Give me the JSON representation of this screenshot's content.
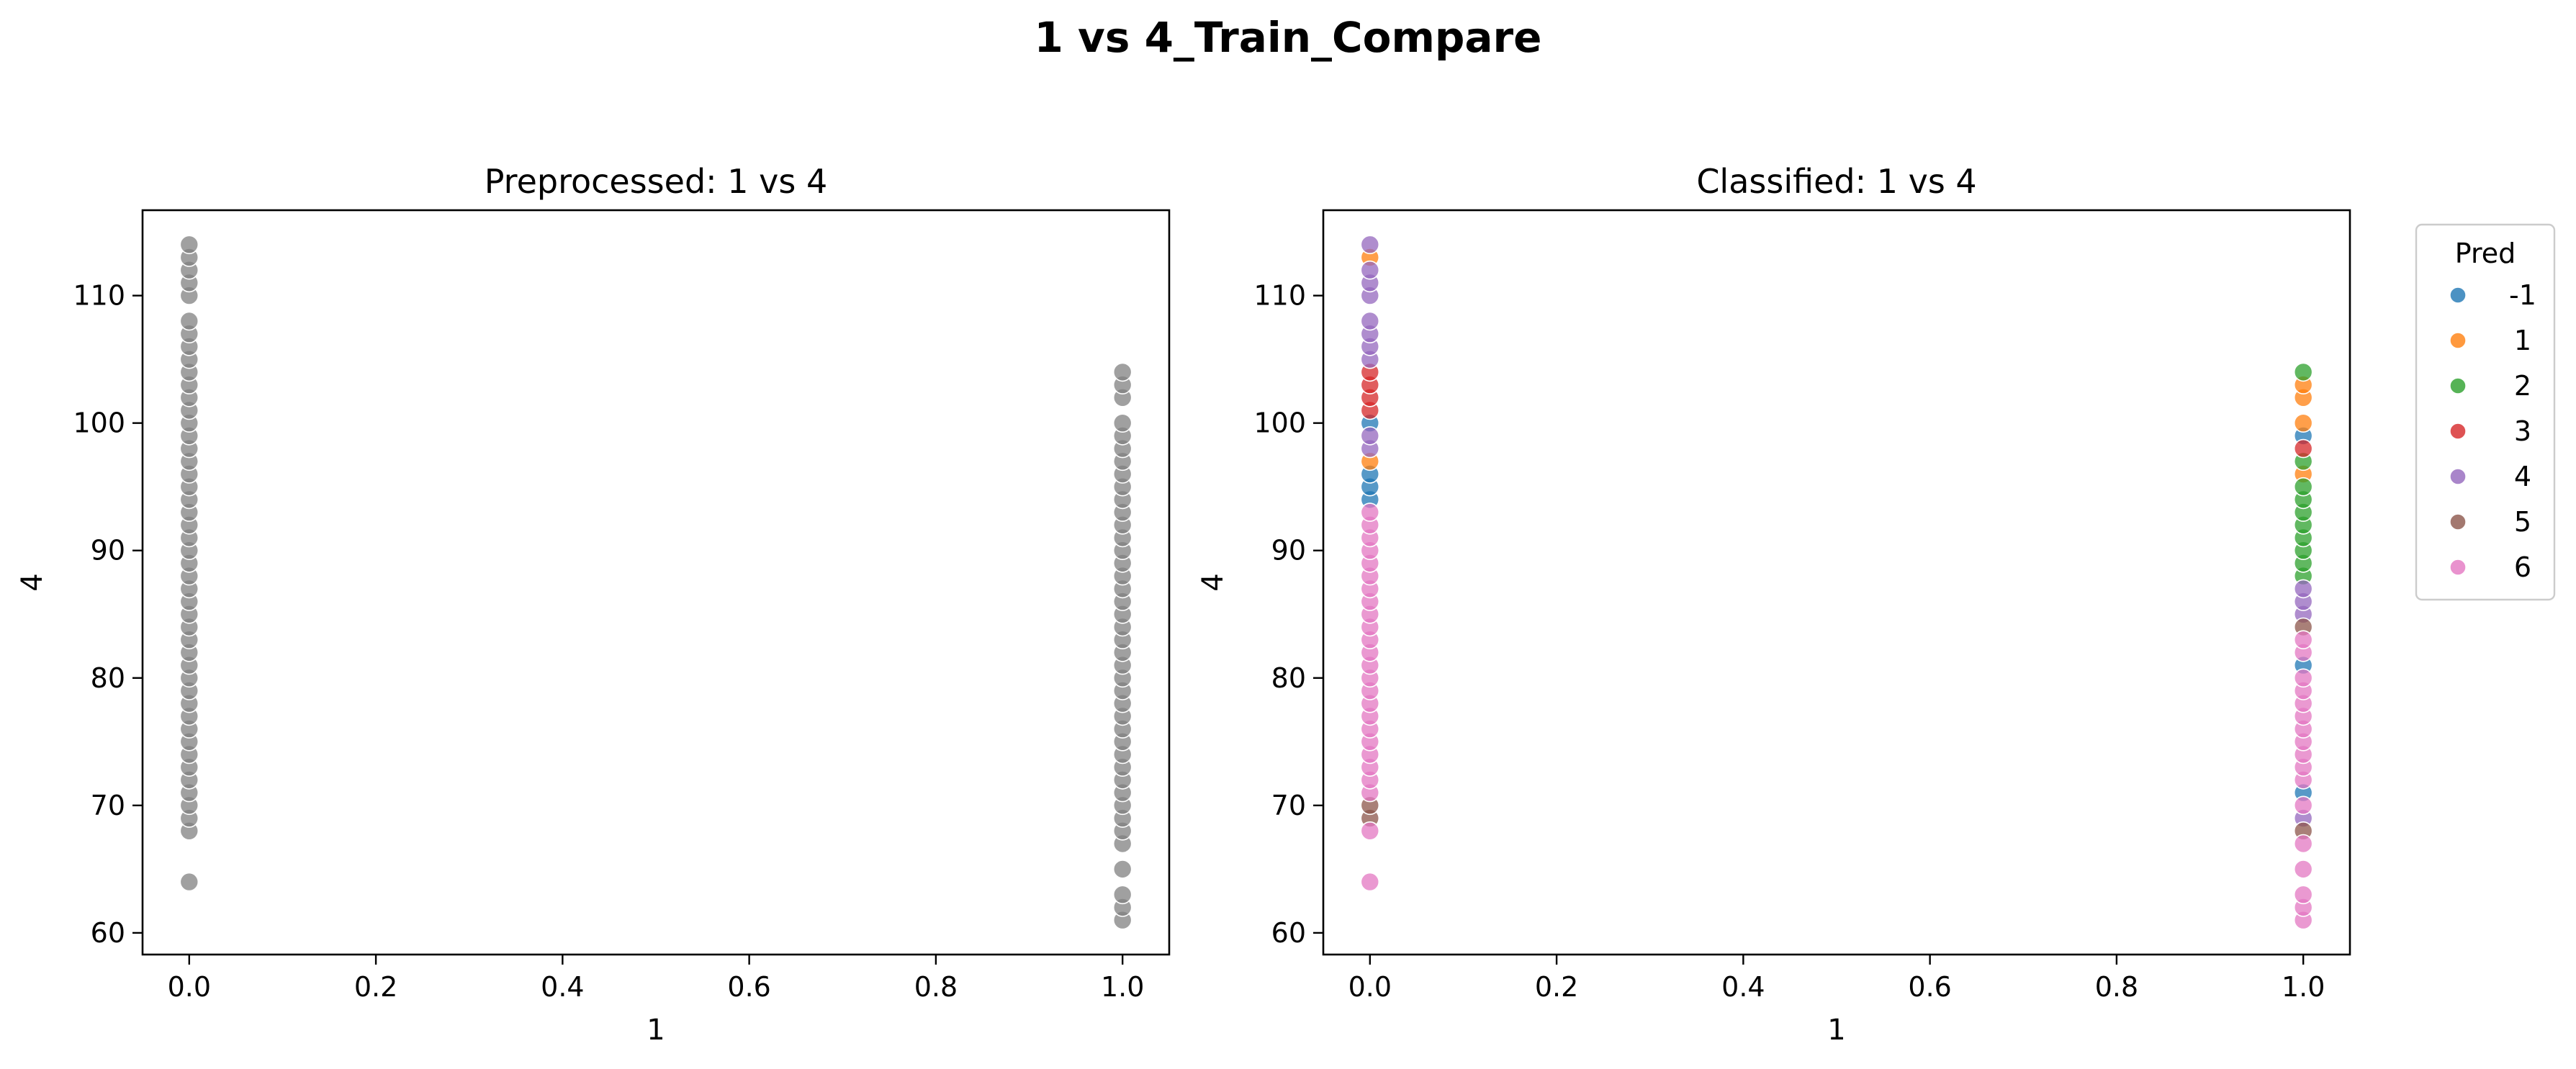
{
  "figure": {
    "suptitle": "1 vs 4_Train_Compare"
  },
  "chart_data": [
    {
      "type": "scatter",
      "title": "Preprocessed: 1 vs 4",
      "xlabel": "1",
      "ylabel": "4",
      "xlim": [
        -0.05,
        1.05
      ],
      "ylim": [
        58.3,
        116.7
      ],
      "xticks": [
        "0.0",
        "0.2",
        "0.4",
        "0.6",
        "0.8",
        "1.0"
      ],
      "yticks": [
        "60",
        "70",
        "80",
        "90",
        "100",
        "110"
      ],
      "grid": false,
      "series": [
        {
          "color": "#808080",
          "points": [
            [
              0,
              64
            ],
            [
              0,
              68
            ],
            [
              0,
              69
            ],
            [
              0,
              70
            ],
            [
              0,
              71
            ],
            [
              0,
              72
            ],
            [
              0,
              73
            ],
            [
              0,
              74
            ],
            [
              0,
              75
            ],
            [
              0,
              76
            ],
            [
              0,
              77
            ],
            [
              0,
              78
            ],
            [
              0,
              79
            ],
            [
              0,
              80
            ],
            [
              0,
              81
            ],
            [
              0,
              82
            ],
            [
              0,
              83
            ],
            [
              0,
              84
            ],
            [
              0,
              85
            ],
            [
              0,
              86
            ],
            [
              0,
              87
            ],
            [
              0,
              88
            ],
            [
              0,
              89
            ],
            [
              0,
              90
            ],
            [
              0,
              91
            ],
            [
              0,
              92
            ],
            [
              0,
              93
            ],
            [
              0,
              94
            ],
            [
              0,
              95
            ],
            [
              0,
              96
            ],
            [
              0,
              97
            ],
            [
              0,
              98
            ],
            [
              0,
              99
            ],
            [
              0,
              100
            ],
            [
              0,
              101
            ],
            [
              0,
              102
            ],
            [
              0,
              103
            ],
            [
              0,
              104
            ],
            [
              0,
              105
            ],
            [
              0,
              106
            ],
            [
              0,
              107
            ],
            [
              0,
              108
            ],
            [
              0,
              110
            ],
            [
              0,
              111
            ],
            [
              0,
              112
            ],
            [
              0,
              113
            ],
            [
              0,
              114
            ],
            [
              1,
              61
            ],
            [
              1,
              62
            ],
            [
              1,
              63
            ],
            [
              1,
              65
            ],
            [
              1,
              67
            ],
            [
              1,
              68
            ],
            [
              1,
              69
            ],
            [
              1,
              70
            ],
            [
              1,
              71
            ],
            [
              1,
              72
            ],
            [
              1,
              73
            ],
            [
              1,
              74
            ],
            [
              1,
              75
            ],
            [
              1,
              76
            ],
            [
              1,
              77
            ],
            [
              1,
              78
            ],
            [
              1,
              79
            ],
            [
              1,
              80
            ],
            [
              1,
              81
            ],
            [
              1,
              82
            ],
            [
              1,
              83
            ],
            [
              1,
              84
            ],
            [
              1,
              85
            ],
            [
              1,
              86
            ],
            [
              1,
              87
            ],
            [
              1,
              88
            ],
            [
              1,
              89
            ],
            [
              1,
              90
            ],
            [
              1,
              91
            ],
            [
              1,
              92
            ],
            [
              1,
              93
            ],
            [
              1,
              94
            ],
            [
              1,
              95
            ],
            [
              1,
              96
            ],
            [
              1,
              97
            ],
            [
              1,
              98
            ],
            [
              1,
              99
            ],
            [
              1,
              100
            ],
            [
              1,
              102
            ],
            [
              1,
              103
            ],
            [
              1,
              104
            ]
          ]
        }
      ]
    },
    {
      "type": "scatter",
      "title": "Classified: 1 vs 4",
      "xlabel": "1",
      "ylabel": "4",
      "xlim": [
        -0.05,
        1.05
      ],
      "ylim": [
        58.3,
        116.7
      ],
      "xticks": [
        "0.0",
        "0.2",
        "0.4",
        "0.6",
        "0.8",
        "1.0"
      ],
      "yticks": [
        "60",
        "70",
        "80",
        "90",
        "100",
        "110"
      ],
      "grid": false,
      "legend": {
        "title": "Pred",
        "placement": "outside-right-top"
      },
      "series": [
        {
          "name": "-1",
          "color": "#1f77b4",
          "points": [
            [
              0,
              94
            ],
            [
              0,
              95
            ],
            [
              0,
              96
            ],
            [
              0,
              100
            ],
            [
              1,
              71
            ],
            [
              1,
              81
            ],
            [
              1,
              99
            ]
          ]
        },
        {
          "name": "1",
          "color": "#ff7f0e",
          "points": [
            [
              0,
              97
            ],
            [
              0,
              113
            ],
            [
              1,
              96
            ],
            [
              1,
              100
            ],
            [
              1,
              102
            ],
            [
              1,
              103
            ]
          ]
        },
        {
          "name": "2",
          "color": "#2ca02c",
          "points": [
            [
              1,
              88
            ],
            [
              1,
              89
            ],
            [
              1,
              90
            ],
            [
              1,
              91
            ],
            [
              1,
              92
            ],
            [
              1,
              93
            ],
            [
              1,
              94
            ],
            [
              1,
              95
            ],
            [
              1,
              97
            ],
            [
              1,
              104
            ]
          ]
        },
        {
          "name": "3",
          "color": "#d62728",
          "points": [
            [
              0,
              101
            ],
            [
              0,
              102
            ],
            [
              0,
              103
            ],
            [
              0,
              104
            ],
            [
              1,
              98
            ]
          ]
        },
        {
          "name": "4",
          "color": "#9467bd",
          "points": [
            [
              0,
              98
            ],
            [
              0,
              99
            ],
            [
              0,
              105
            ],
            [
              0,
              106
            ],
            [
              0,
              107
            ],
            [
              0,
              108
            ],
            [
              0,
              110
            ],
            [
              0,
              111
            ],
            [
              0,
              112
            ],
            [
              0,
              114
            ],
            [
              1,
              69
            ],
            [
              1,
              85
            ],
            [
              1,
              86
            ],
            [
              1,
              87
            ]
          ]
        },
        {
          "name": "5",
          "color": "#8c564b",
          "points": [
            [
              0,
              69
            ],
            [
              0,
              70
            ],
            [
              1,
              68
            ],
            [
              1,
              84
            ]
          ]
        },
        {
          "name": "6",
          "color": "#e377c2",
          "points": [
            [
              0,
              64
            ],
            [
              0,
              68
            ],
            [
              0,
              71
            ],
            [
              0,
              72
            ],
            [
              0,
              73
            ],
            [
              0,
              74
            ],
            [
              0,
              75
            ],
            [
              0,
              76
            ],
            [
              0,
              77
            ],
            [
              0,
              78
            ],
            [
              0,
              79
            ],
            [
              0,
              80
            ],
            [
              0,
              81
            ],
            [
              0,
              82
            ],
            [
              0,
              83
            ],
            [
              0,
              84
            ],
            [
              0,
              85
            ],
            [
              0,
              86
            ],
            [
              0,
              87
            ],
            [
              0,
              88
            ],
            [
              0,
              89
            ],
            [
              0,
              90
            ],
            [
              0,
              91
            ],
            [
              0,
              92
            ],
            [
              0,
              93
            ],
            [
              1,
              61
            ],
            [
              1,
              62
            ],
            [
              1,
              63
            ],
            [
              1,
              65
            ],
            [
              1,
              67
            ],
            [
              1,
              70
            ],
            [
              1,
              72
            ],
            [
              1,
              73
            ],
            [
              1,
              74
            ],
            [
              1,
              75
            ],
            [
              1,
              76
            ],
            [
              1,
              77
            ],
            [
              1,
              78
            ],
            [
              1,
              79
            ],
            [
              1,
              80
            ],
            [
              1,
              82
            ],
            [
              1,
              83
            ]
          ]
        }
      ]
    }
  ]
}
